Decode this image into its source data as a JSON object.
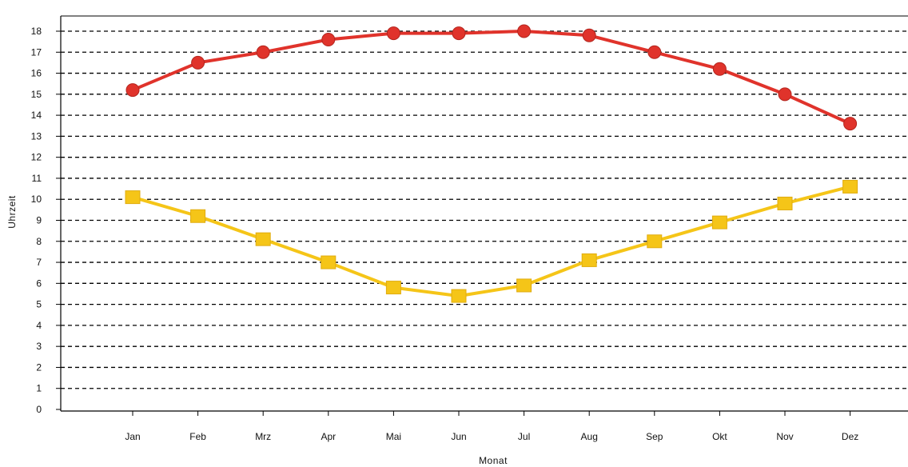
{
  "chart_data": {
    "type": "line",
    "title": "",
    "xlabel": "Monat",
    "ylabel": "Uhrzeit",
    "categories": [
      "Jan",
      "Feb",
      "Mrz",
      "Apr",
      "Mai",
      "Jun",
      "Jul",
      "Aug",
      "Sep",
      "Okt",
      "Nov",
      "Dez"
    ],
    "ylim": [
      0,
      18
    ],
    "yticks": [
      0,
      1,
      2,
      3,
      4,
      5,
      6,
      7,
      8,
      9,
      10,
      11,
      12,
      13,
      14,
      15,
      16,
      17,
      18
    ],
    "grid": true,
    "grid_style": "dashed",
    "legend": "none",
    "series": [
      {
        "values": [
          15.2,
          16.5,
          17.0,
          17.6,
          17.9,
          17.9,
          18.0,
          17.8,
          17.0,
          16.2,
          15.0,
          13.6
        ],
        "color": "#e0332b",
        "marker": "circle"
      },
      {
        "values": [
          10.1,
          9.2,
          8.1,
          7.0,
          5.8,
          5.4,
          5.9,
          7.1,
          8.0,
          8.9,
          9.8,
          10.6
        ],
        "color": "#f5c518",
        "marker": "square"
      }
    ]
  }
}
